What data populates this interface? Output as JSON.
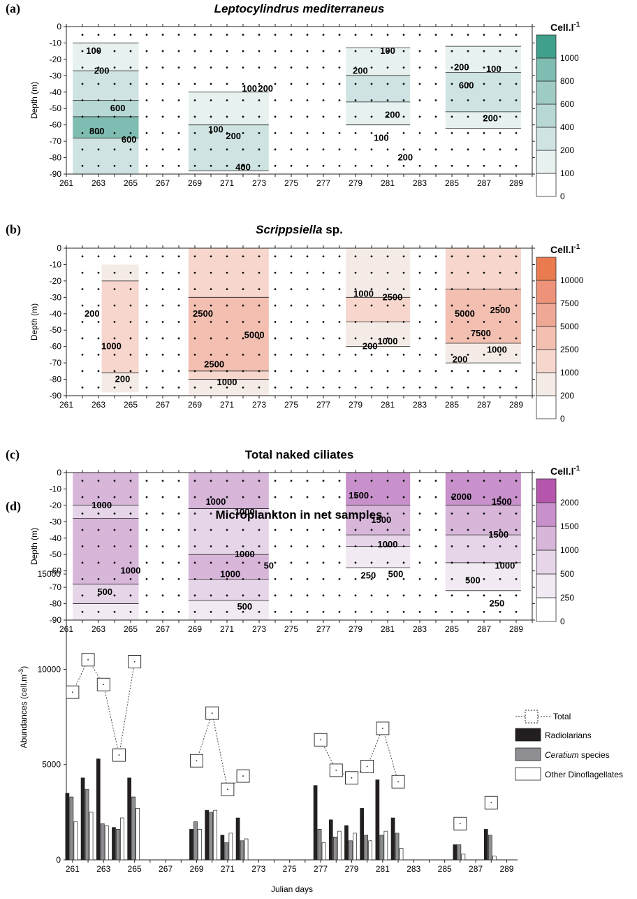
{
  "chart_data": [
    {
      "type": "heatmap",
      "panel_label": "(a)",
      "title_italic": "Leptocylindrus mediterraneus",
      "title_plain": "",
      "ylabel": "Depth (m)",
      "x_ticks": [
        261,
        263,
        265,
        267,
        269,
        271,
        273,
        275,
        277,
        279,
        281,
        283,
        285,
        287,
        289
      ],
      "y_ticks": [
        0,
        -10,
        -20,
        -30,
        -40,
        -50,
        -60,
        -70,
        -80,
        -90
      ],
      "xlim": [
        261,
        290
      ],
      "ylim": [
        -90,
        0
      ],
      "colorbar": {
        "title": "Cell.l",
        "title_sup": "-1",
        "levels": [
          0,
          100,
          200,
          400,
          600,
          800,
          1000
        ],
        "colors": [
          "#ffffff",
          "#e6f1f0",
          "#cfe4e2",
          "#b7d8d4",
          "#9fcbc5",
          "#7fbcb2",
          "#3fa08c"
        ]
      },
      "series": [
        {
          "x": [
            261.4,
            265.5
          ],
          "bands": [
            {
              "top": 0,
              "bottom": -10,
              "level": 0
            },
            {
              "top": -10,
              "bottom": -27,
              "level": 1
            },
            {
              "top": -27,
              "bottom": -45,
              "level": 2
            },
            {
              "top": -45,
              "bottom": -55,
              "level": 3
            },
            {
              "top": -55,
              "bottom": -68,
              "level": 5
            },
            {
              "top": -68,
              "bottom": -90,
              "level": 2
            }
          ]
        },
        {
          "x": [
            268.6,
            273.6
          ],
          "bands": [
            {
              "top": 0,
              "bottom": -40,
              "level": 0
            },
            {
              "top": -40,
              "bottom": -60,
              "level": 1
            },
            {
              "top": -60,
              "bottom": -88,
              "level": 2
            },
            {
              "top": -88,
              "bottom": -90,
              "level": 0
            }
          ]
        },
        {
          "x": [
            278.4,
            282.4
          ],
          "bands": [
            {
              "top": 0,
              "bottom": -13,
              "level": 0
            },
            {
              "top": -13,
              "bottom": -30,
              "level": 1
            },
            {
              "top": -30,
              "bottom": -46,
              "level": 2
            },
            {
              "top": -46,
              "bottom": -60,
              "level": 1
            },
            {
              "top": -60,
              "bottom": -90,
              "level": 0
            }
          ]
        },
        {
          "x": [
            284.6,
            289.3
          ],
          "bands": [
            {
              "top": 0,
              "bottom": -12,
              "level": 0
            },
            {
              "top": -12,
              "bottom": -28,
              "level": 1
            },
            {
              "top": -28,
              "bottom": -52,
              "level": 2
            },
            {
              "top": -52,
              "bottom": -62,
              "level": 1
            },
            {
              "top": -62,
              "bottom": -90,
              "level": 0
            }
          ]
        }
      ],
      "contour_labels": [
        {
          "text": "100",
          "x": 262.7,
          "y": -15
        },
        {
          "text": "200",
          "x": 263.2,
          "y": -27
        },
        {
          "text": "600",
          "x": 264.2,
          "y": -50
        },
        {
          "text": "800",
          "x": 262.9,
          "y": -64
        },
        {
          "text": "600",
          "x": 264.9,
          "y": -69
        },
        {
          "text": "100",
          "x": 272.4,
          "y": -38
        },
        {
          "text": "200",
          "x": 273.4,
          "y": -38
        },
        {
          "text": "100",
          "x": 270.3,
          "y": -63
        },
        {
          "text": "200",
          "x": 271.4,
          "y": -67
        },
        {
          "text": "400",
          "x": 272.0,
          "y": -86
        },
        {
          "text": "100",
          "x": 281.0,
          "y": -15
        },
        {
          "text": "200",
          "x": 279.3,
          "y": -27
        },
        {
          "text": "200",
          "x": 281.3,
          "y": -54
        },
        {
          "text": "100",
          "x": 280.6,
          "y": -68
        },
        {
          "text": "200",
          "x": 282.1,
          "y": -80
        },
        {
          "text": "200",
          "x": 285.6,
          "y": -25
        },
        {
          "text": "100",
          "x": 287.6,
          "y": -26
        },
        {
          "text": "600",
          "x": 285.9,
          "y": -36
        },
        {
          "text": "200",
          "x": 287.4,
          "y": -56
        }
      ]
    },
    {
      "type": "heatmap",
      "panel_label": "(b)",
      "title_italic": "Scrippsiella",
      "title_plain": " sp.",
      "ylabel": "Depth (m)",
      "x_ticks": [
        261,
        263,
        265,
        267,
        269,
        271,
        273,
        275,
        277,
        279,
        281,
        283,
        285,
        287,
        289
      ],
      "y_ticks": [
        0,
        -10,
        -20,
        -30,
        -40,
        -50,
        -60,
        -70,
        -80,
        -90
      ],
      "xlim": [
        261,
        290
      ],
      "ylim": [
        -90,
        0
      ],
      "colorbar": {
        "title": "Cell.l",
        "title_sup": "-1",
        "levels": [
          0,
          200,
          1000,
          2500,
          5000,
          7500,
          10000
        ],
        "colors": [
          "#ffffff",
          "#f4ebe7",
          "#f6d6cd",
          "#f3bfb1",
          "#f0a896",
          "#ee937a",
          "#ea7b4f"
        ]
      },
      "series": [
        {
          "x": [
            261.4,
            265.5
          ],
          "bands": [
            {
              "top": 0,
              "bottom": -90,
              "level": 0
            }
          ]
        },
        {
          "x": [
            263.2,
            265.5
          ],
          "bands": [
            {
              "top": -10,
              "bottom": -20,
              "level": 1
            },
            {
              "top": -20,
              "bottom": -76,
              "level": 2
            },
            {
              "top": -76,
              "bottom": -88,
              "level": 1
            }
          ]
        },
        {
          "x": [
            268.6,
            273.6
          ],
          "bands": [
            {
              "top": 0,
              "bottom": -30,
              "level": 2
            },
            {
              "top": -30,
              "bottom": -75,
              "level": 3
            },
            {
              "top": -75,
              "bottom": -80,
              "level": 2
            },
            {
              "top": -80,
              "bottom": -90,
              "level": 1
            }
          ]
        },
        {
          "x": [
            278.4,
            282.4
          ],
          "bands": [
            {
              "top": 0,
              "bottom": -30,
              "level": 1
            },
            {
              "top": -30,
              "bottom": -45,
              "level": 2
            },
            {
              "top": -45,
              "bottom": -60,
              "level": 1
            },
            {
              "top": -60,
              "bottom": -90,
              "level": 0
            }
          ]
        },
        {
          "x": [
            284.6,
            289.3
          ],
          "bands": [
            {
              "top": 0,
              "bottom": -25,
              "level": 2
            },
            {
              "top": -25,
              "bottom": -58,
              "level": 3
            },
            {
              "top": -58,
              "bottom": -70,
              "level": 1
            },
            {
              "top": -70,
              "bottom": -90,
              "level": 0
            }
          ]
        }
      ],
      "contour_labels": [
        {
          "text": "200",
          "x": 262.6,
          "y": -40
        },
        {
          "text": "1000",
          "x": 263.8,
          "y": -60
        },
        {
          "text": "200",
          "x": 264.5,
          "y": -80
        },
        {
          "text": "2500",
          "x": 269.5,
          "y": -40
        },
        {
          "text": "5000",
          "x": 272.7,
          "y": -53
        },
        {
          "text": "2500",
          "x": 270.2,
          "y": -71
        },
        {
          "text": "1000",
          "x": 271.0,
          "y": -82
        },
        {
          "text": "1000",
          "x": 279.5,
          "y": -28
        },
        {
          "text": "2500",
          "x": 281.3,
          "y": -30
        },
        {
          "text": "200",
          "x": 279.9,
          "y": -60
        },
        {
          "text": "1000",
          "x": 281.0,
          "y": -57
        },
        {
          "text": "5000",
          "x": 285.8,
          "y": -40
        },
        {
          "text": "2500",
          "x": 288.0,
          "y": -38
        },
        {
          "text": "7500",
          "x": 286.8,
          "y": -52
        },
        {
          "text": "1000",
          "x": 287.8,
          "y": -62
        },
        {
          "text": "200",
          "x": 285.5,
          "y": -68
        }
      ]
    },
    {
      "type": "heatmap",
      "panel_label": "(c)",
      "title_italic": "",
      "title_plain": "Total naked ciliates",
      "ylabel": "Depth (m)",
      "x_ticks": [
        261,
        263,
        265,
        267,
        269,
        271,
        273,
        275,
        277,
        279,
        281,
        283,
        285,
        287,
        289
      ],
      "y_ticks": [
        0,
        -10,
        -20,
        -30,
        -40,
        -50,
        -60,
        -70,
        -80,
        -90
      ],
      "xlim": [
        261,
        290
      ],
      "ylim": [
        -90,
        0
      ],
      "colorbar": {
        "title": "Cell.l",
        "title_sup": "-1",
        "levels": [
          0,
          250,
          500,
          1000,
          1500,
          2000
        ],
        "colors": [
          "#ffffff",
          "#f1eaf2",
          "#e6d4e8",
          "#d7b6da",
          "#c891cb",
          "#b556ac"
        ]
      },
      "series": [
        {
          "x": [
            261.4,
            265.5
          ],
          "bands": [
            {
              "top": 0,
              "bottom": -20,
              "level": 3
            },
            {
              "top": -20,
              "bottom": -28,
              "level": 2
            },
            {
              "top": -28,
              "bottom": -68,
              "level": 3
            },
            {
              "top": -68,
              "bottom": -80,
              "level": 2
            },
            {
              "top": -80,
              "bottom": -90,
              "level": 1
            }
          ]
        },
        {
          "x": [
            268.6,
            273.6
          ],
          "bands": [
            {
              "top": 0,
              "bottom": -22,
              "level": 3
            },
            {
              "top": -22,
              "bottom": -50,
              "level": 2
            },
            {
              "top": -50,
              "bottom": -65,
              "level": 3
            },
            {
              "top": -65,
              "bottom": -78,
              "level": 2
            },
            {
              "top": -78,
              "bottom": -90,
              "level": 1
            }
          ]
        },
        {
          "x": [
            278.4,
            282.4
          ],
          "bands": [
            {
              "top": 0,
              "bottom": -20,
              "level": 4
            },
            {
              "top": -20,
              "bottom": -38,
              "level": 3
            },
            {
              "top": -38,
              "bottom": -45,
              "level": 2
            },
            {
              "top": -45,
              "bottom": -58,
              "level": 1
            },
            {
              "top": -58,
              "bottom": -90,
              "level": 0
            }
          ]
        },
        {
          "x": [
            284.6,
            289.3
          ],
          "bands": [
            {
              "top": 0,
              "bottom": -20,
              "level": 4
            },
            {
              "top": -20,
              "bottom": -38,
              "level": 3
            },
            {
              "top": -38,
              "bottom": -55,
              "level": 2
            },
            {
              "top": -55,
              "bottom": -72,
              "level": 1
            },
            {
              "top": -72,
              "bottom": -90,
              "level": 0
            }
          ]
        }
      ],
      "contour_labels": [
        {
          "text": "1000",
          "x": 263.2,
          "y": -20
        },
        {
          "text": "1000",
          "x": 265.0,
          "y": -60
        },
        {
          "text": "500",
          "x": 263.4,
          "y": -73
        },
        {
          "text": "1000",
          "x": 270.3,
          "y": -18
        },
        {
          "text": "1000",
          "x": 272.1,
          "y": -24
        },
        {
          "text": "1000",
          "x": 272.1,
          "y": -50
        },
        {
          "text": "1000",
          "x": 271.2,
          "y": -62
        },
        {
          "text": "50",
          "x": 273.6,
          "y": -57
        },
        {
          "text": "500",
          "x": 272.1,
          "y": -82
        },
        {
          "text": "1500",
          "x": 279.2,
          "y": -14
        },
        {
          "text": "1500",
          "x": 280.6,
          "y": -29
        },
        {
          "text": "1000",
          "x": 281.0,
          "y": -44
        },
        {
          "text": "250",
          "x": 279.8,
          "y": -63
        },
        {
          "text": "500",
          "x": 281.5,
          "y": -62
        },
        {
          "text": "2000",
          "x": 285.6,
          "y": -15
        },
        {
          "text": "1500",
          "x": 288.1,
          "y": -18
        },
        {
          "text": "1500",
          "x": 287.9,
          "y": -38
        },
        {
          "text": "1000",
          "x": 288.3,
          "y": -57
        },
        {
          "text": "500",
          "x": 286.3,
          "y": -66
        },
        {
          "text": "250",
          "x": 287.8,
          "y": -80
        }
      ]
    },
    {
      "type": "bar",
      "panel_label": "(d)",
      "title": "Microplankton in net samples",
      "xlabel": "Julian days",
      "ylabel": "Abundances (cell.m",
      "ylabel_sup": "-3",
      "ylabel_end": ")",
      "x_ticks": [
        261,
        263,
        265,
        267,
        269,
        271,
        273,
        275,
        277,
        279,
        281,
        283,
        285,
        287,
        289
      ],
      "y_ticks": [
        0,
        5000,
        10000,
        15000
      ],
      "xlim": [
        260.6,
        289.7
      ],
      "ylim": [
        0,
        17500
      ],
      "x": [
        261,
        262,
        263,
        264,
        265,
        269,
        270,
        271,
        272,
        277,
        278,
        279,
        280,
        281,
        282,
        286,
        288
      ],
      "series": [
        {
          "name": "Total",
          "style": "dashed-line-square",
          "values": [
            8800,
            10500,
            9200,
            5500,
            10400,
            5200,
            7700,
            3700,
            4400,
            6300,
            4700,
            4300,
            4900,
            6900,
            4100,
            1900,
            3000
          ]
        },
        {
          "name": "Radiolarians",
          "color": "#231f20",
          "values": [
            3500,
            4300,
            5300,
            1700,
            4300,
            1600,
            2600,
            1300,
            2200,
            3900,
            2100,
            1800,
            2700,
            4200,
            2200,
            800,
            1600
          ]
        },
        {
          "name": "Ceratium",
          "name_suffix": " species",
          "name_italic": true,
          "color": "#8f8f93",
          "values": [
            3300,
            3700,
            1900,
            1600,
            3300,
            2000,
            2500,
            900,
            1000,
            1600,
            1200,
            1000,
            1300,
            1300,
            1400,
            800,
            1300
          ]
        },
        {
          "name": "Other Dinoflagellates",
          "color": "#ffffff",
          "values": [
            2000,
            2500,
            1800,
            2200,
            2700,
            1600,
            2600,
            1400,
            1100,
            900,
            1500,
            1400,
            1000,
            1500,
            600,
            300,
            200
          ]
        }
      ],
      "legend": "right"
    }
  ]
}
